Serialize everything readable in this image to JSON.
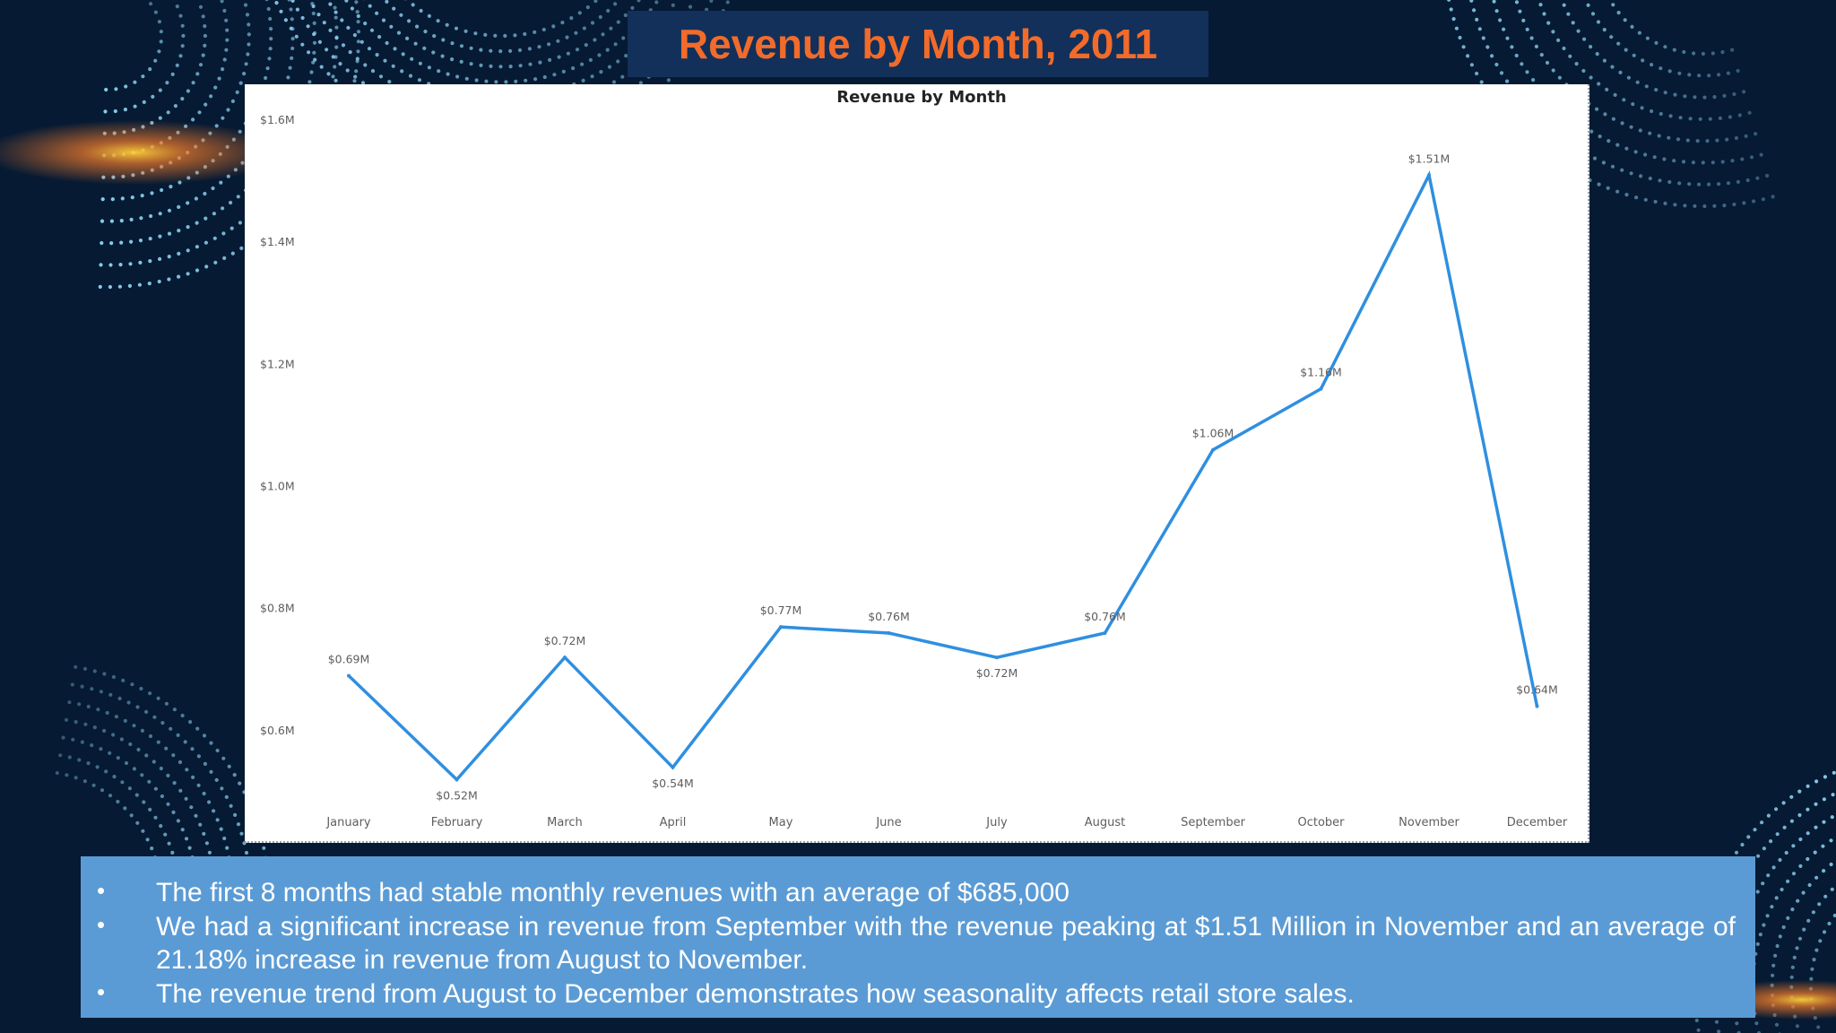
{
  "slide": {
    "title": "Revenue by Month, 2011",
    "colors": {
      "background": "#061a33",
      "title_box": "#12305a",
      "title_text": "#f26b2a",
      "notes_box": "#5b9bd5",
      "line": "#2f8fe0",
      "dots": "#8fd3f4"
    }
  },
  "chart_data": {
    "type": "line",
    "title": "Revenue by Month",
    "xlabel": "",
    "ylabel": "",
    "categories": [
      "January",
      "February",
      "March",
      "April",
      "May",
      "June",
      "July",
      "August",
      "September",
      "October",
      "November",
      "December"
    ],
    "series": [
      {
        "name": "Revenue",
        "values": [
          0.69,
          0.52,
          0.72,
          0.54,
          0.77,
          0.76,
          0.72,
          0.76,
          1.06,
          1.16,
          1.51,
          0.64
        ],
        "labels": [
          "$0.69M",
          "$0.52M",
          "$0.72M",
          "$0.54M",
          "$0.77M",
          "$0.76M",
          "$0.72M",
          "$0.76M",
          "$1.06M",
          "$1.16M",
          "$1.51M",
          "$0.64M"
        ]
      }
    ],
    "yticks": [
      0.6,
      0.8,
      1.0,
      1.2,
      1.4,
      1.6
    ],
    "ytick_labels": [
      "$0.6M",
      "$0.8M",
      "$1.0M",
      "$1.2M",
      "$1.4M",
      "$1.6M"
    ],
    "ylim": [
      0.5,
      1.6
    ],
    "grid": false,
    "legend": "none"
  },
  "notes": {
    "bullets": [
      "The first 8 months had stable monthly revenues with an average of $685,000",
      "We had a significant increase in revenue from September with the revenue peaking at $1.51 Million in November and an average of 21.18% increase in revenue from August to November.",
      "The revenue trend from August to December demonstrates how seasonality affects retail store sales."
    ]
  }
}
